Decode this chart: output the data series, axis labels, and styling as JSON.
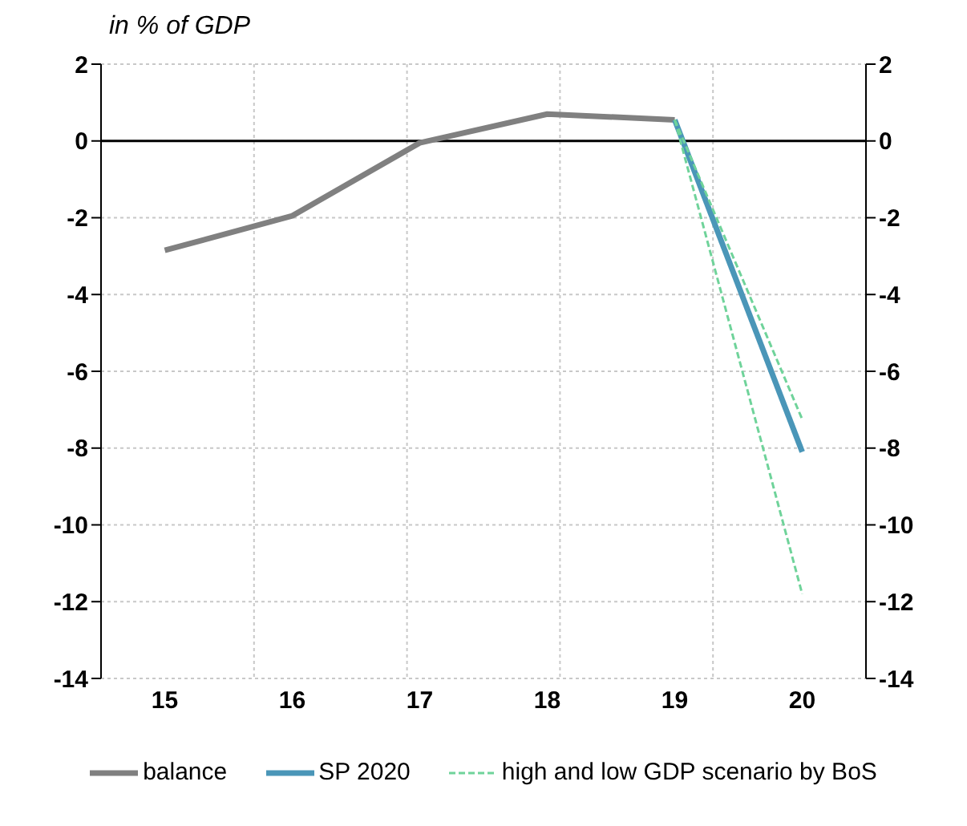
{
  "chart_data": {
    "type": "line",
    "subtitle": "in % of GDP",
    "categories": [
      "15",
      "16",
      "17",
      "18",
      "19",
      "20"
    ],
    "series": [
      {
        "name": "balance",
        "color": "#808080",
        "values": [
          -2.85,
          -1.95,
          -0.05,
          0.7,
          0.55,
          null
        ]
      },
      {
        "name": "SP 2020",
        "color": "#4a96b8",
        "values": [
          null,
          null,
          null,
          null,
          0.55,
          -8.1
        ]
      },
      {
        "name": "high and low GDP scenario by BoS",
        "color": "#6fd39a",
        "line_style": "dashed",
        "values": [
          null,
          null,
          null,
          null,
          0.55,
          -7.25
        ]
      },
      {
        "color": "#6fd39a",
        "line_style": "dashed",
        "values": [
          null,
          null,
          null,
          null,
          0.55,
          -11.8
        ]
      }
    ],
    "ylim": [
      -14,
      2
    ],
    "yticks": [
      -14,
      -12,
      -10,
      -8,
      -6,
      -4,
      -2,
      0,
      2
    ],
    "y2lim": [
      -14,
      2
    ],
    "y2ticks": [
      -14,
      -12,
      -10,
      -8,
      -6,
      -4,
      -2,
      0,
      2
    ],
    "grid": true,
    "legend": "bottom",
    "marker": "none",
    "line_style": "solid"
  }
}
